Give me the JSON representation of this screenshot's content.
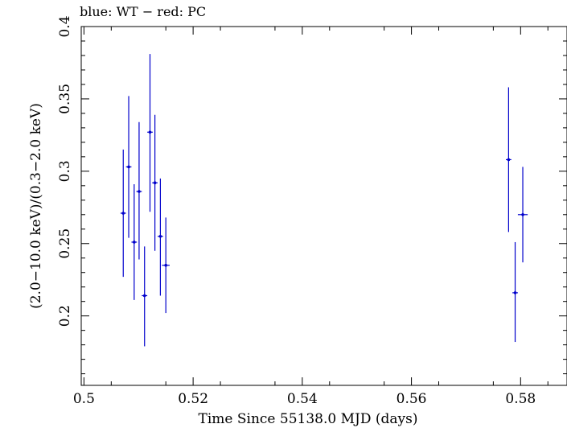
{
  "chart_data": {
    "type": "scatter",
    "title": "blue: WT − red: PC",
    "xlabel": "Time Since 55138.0 MJD (days)",
    "ylabel": "(2.0−10.0 keV)/(0.3−2.0 keV)",
    "xlim": [
      0.4995,
      0.5885
    ],
    "ylim": [
      0.152,
      0.4
    ],
    "x_ticks": [
      0.5,
      0.52,
      0.54,
      0.56,
      0.58
    ],
    "x_tick_labels": [
      "0.5",
      "0.52",
      "0.54",
      "0.56",
      "0.58"
    ],
    "y_ticks": [
      0.2,
      0.25,
      0.3,
      0.35,
      0.4
    ],
    "y_tick_labels": [
      "0.2",
      "0.25",
      "0.3",
      "0.35",
      "0.4"
    ],
    "grid": false,
    "series": [
      {
        "color": "#0000cc",
        "points": [
          {
            "x": 0.5072,
            "y": 0.271,
            "xerr": 0.0005,
            "ylo": 0.227,
            "yhi": 0.315
          },
          {
            "x": 0.5082,
            "y": 0.303,
            "xerr": 0.0005,
            "ylo": 0.254,
            "yhi": 0.352
          },
          {
            "x": 0.5092,
            "y": 0.251,
            "xerr": 0.0005,
            "ylo": 0.211,
            "yhi": 0.291
          },
          {
            "x": 0.5101,
            "y": 0.286,
            "xerr": 0.0005,
            "ylo": 0.239,
            "yhi": 0.334
          },
          {
            "x": 0.5111,
            "y": 0.214,
            "xerr": 0.0005,
            "ylo": 0.179,
            "yhi": 0.248
          },
          {
            "x": 0.5121,
            "y": 0.327,
            "xerr": 0.0005,
            "ylo": 0.272,
            "yhi": 0.381
          },
          {
            "x": 0.513,
            "y": 0.292,
            "xerr": 0.0005,
            "ylo": 0.245,
            "yhi": 0.339
          },
          {
            "x": 0.514,
            "y": 0.255,
            "xerr": 0.0005,
            "ylo": 0.214,
            "yhi": 0.295
          },
          {
            "x": 0.515,
            "y": 0.235,
            "xerr": 0.0007,
            "ylo": 0.202,
            "yhi": 0.268
          },
          {
            "x": 0.5778,
            "y": 0.308,
            "xerr": 0.0005,
            "ylo": 0.258,
            "yhi": 0.358
          },
          {
            "x": 0.579,
            "y": 0.216,
            "xerr": 0.0005,
            "ylo": 0.182,
            "yhi": 0.251
          },
          {
            "x": 0.5804,
            "y": 0.27,
            "xerr": 0.0009,
            "ylo": 0.237,
            "yhi": 0.303
          }
        ]
      }
    ]
  }
}
